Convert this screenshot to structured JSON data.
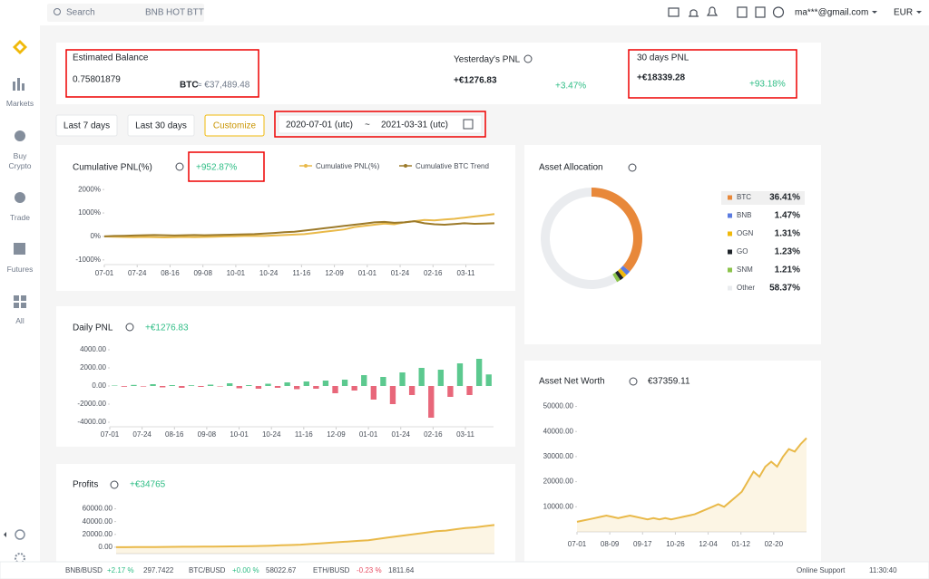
{
  "topbar": {
    "search": "Search",
    "hints": [
      "BNB",
      "HOT",
      "BTT"
    ],
    "email": "ma***@gmail.com",
    "currency": "EUR"
  },
  "sidebar": [
    "Markets",
    "Buy Crypto",
    "Trade",
    "Futures",
    "All"
  ],
  "balance": {
    "label": "Estimated Balance",
    "value": "0.75801879",
    "unit": "BTC",
    "approx": "≈ €37,489.48",
    "yesterday_label": "Yesterday's PNL",
    "yesterday_value": "+€1276.83",
    "yesterday_pct": "+3.47%",
    "month_label": "30 days PNL",
    "month_value": "+€18339.28",
    "month_pct": "+93.18%"
  },
  "filters": {
    "buttons": [
      "Last 7 days",
      "Last 30 days",
      "Customize"
    ],
    "start": "2020-07-01 (utc)",
    "sep": "~",
    "end": "2021-03-31 (utc)"
  },
  "cumulative_pnl": {
    "headline": "+952.87%",
    "chart_data": {
      "type": "line",
      "title": "Cumulative PNL(%)",
      "xticks": [
        "07-01",
        "07-24",
        "08-16",
        "09-08",
        "10-01",
        "10-24",
        "11-16",
        "12-09",
        "01-01",
        "01-24",
        "02-16",
        "03-11"
      ],
      "ylim": [
        -1200,
        2200
      ],
      "yticks": [
        {
          "value": 2000,
          "label": "2000%"
        },
        {
          "value": 1000,
          "label": "1000%"
        },
        {
          "value": 0,
          "label": "0%"
        },
        {
          "value": -1000,
          "label": "-1000%"
        }
      ],
      "series": [
        {
          "name": "Cumulative PNL(%)",
          "color": "#e9b949",
          "values": [
            0,
            -10,
            -20,
            -30,
            -20,
            -30,
            -40,
            -30,
            -20,
            -30,
            -20,
            -10,
            0,
            10,
            20,
            30,
            20,
            40,
            60,
            80,
            100,
            150,
            200,
            250,
            300,
            400,
            450,
            500,
            550,
            520,
            600,
            650,
            700,
            680,
            720,
            750,
            800,
            850,
            900,
            952.87
          ]
        },
        {
          "name": "Cumulative BTC Trend",
          "color": "#9c7a2a",
          "values": [
            0,
            20,
            30,
            40,
            50,
            60,
            50,
            40,
            50,
            60,
            50,
            60,
            70,
            80,
            90,
            100,
            120,
            150,
            180,
            200,
            250,
            300,
            350,
            400,
            450,
            500,
            550,
            600,
            620,
            580,
            600,
            650,
            560,
            520,
            500,
            530,
            560,
            540,
            550,
            560
          ]
        }
      ]
    }
  },
  "daily_pnl": {
    "headline": "+€1276.83",
    "chart_data": {
      "type": "bar",
      "title": "Daily PNL",
      "positive_color": "#5cc98f",
      "negative_color": "#e8677a",
      "xticks": [
        "07-01",
        "07-24",
        "08-16",
        "09-08",
        "10-01",
        "10-24",
        "11-16",
        "12-09",
        "01-01",
        "01-24",
        "02-16",
        "03-11"
      ],
      "ylim": [
        -4500,
        4500
      ],
      "yticks": [
        {
          "value": 4000,
          "label": "4000.00"
        },
        {
          "value": 2000,
          "label": "2000.00"
        },
        {
          "value": 0,
          "label": "0.00"
        },
        {
          "value": -2000,
          "label": "-2000.00"
        },
        {
          "value": -4000,
          "label": "-4000.00"
        }
      ],
      "values": [
        50,
        -80,
        120,
        -60,
        200,
        -150,
        100,
        -200,
        80,
        -100,
        150,
        -50,
        300,
        -250,
        100,
        -300,
        250,
        -200,
        400,
        -350,
        500,
        -300,
        600,
        -800,
        700,
        -500,
        1200,
        -1500,
        1000,
        -2000,
        1500,
        -1000,
        2000,
        -3500,
        1800,
        -1200,
        2500,
        -1000,
        3000,
        1276.83
      ]
    }
  },
  "profits": {
    "headline": "+€34765",
    "chart_data": {
      "type": "line",
      "title": "Profits",
      "color": "#e9b949",
      "ylim": [
        -10000,
        65000
      ],
      "yticks": [
        {
          "value": 60000,
          "label": "60000.00"
        },
        {
          "value": 40000,
          "label": "40000.00"
        },
        {
          "value": 20000,
          "label": "20000.00"
        },
        {
          "value": 0,
          "label": "0.00"
        }
      ],
      "values": [
        0,
        100,
        200,
        300,
        400,
        500,
        600,
        700,
        800,
        900,
        1000,
        1200,
        1300,
        1500,
        1800,
        2000,
        2500,
        3000,
        3500,
        4000,
        5000,
        6000,
        7000,
        8000,
        9000,
        10000,
        11000,
        13000,
        15000,
        17000,
        19000,
        21000,
        23000,
        25000,
        26000,
        28000,
        30000,
        31000,
        33000,
        34765
      ]
    }
  },
  "asset_allocation": {
    "chart_data": {
      "type": "pie",
      "title": "Asset Allocation",
      "categories": [
        "BTC",
        "BNB",
        "OGN",
        "GO",
        "SNM",
        "Other"
      ],
      "values": [
        36.41,
        1.47,
        1.31,
        1.23,
        1.21,
        58.37
      ],
      "value_labels": [
        "36.41%",
        "1.47%",
        "1.31%",
        "1.23%",
        "1.21%",
        "58.37%"
      ],
      "colors": [
        "#e8883a",
        "#5b7be0",
        "#f0b90b",
        "#1e2329",
        "#8bc34a",
        "#eaecef"
      ]
    }
  },
  "net_worth": {
    "headline": "€37359.11",
    "chart_data": {
      "type": "line",
      "title": "Asset Net Worth",
      "color": "#e9b949",
      "xticks": [
        "07-01",
        "08-09",
        "09-17",
        "10-26",
        "12-04",
        "01-12",
        "02-20"
      ],
      "ylim": [
        0,
        52000
      ],
      "yticks": [
        {
          "value": 50000,
          "label": "50000.00"
        },
        {
          "value": 40000,
          "label": "40000.00"
        },
        {
          "value": 30000,
          "label": "30000.00"
        },
        {
          "value": 20000,
          "label": "20000.00"
        },
        {
          "value": 10000,
          "label": "10000.00"
        }
      ],
      "values": [
        4000,
        4500,
        5000,
        5500,
        6000,
        6500,
        6000,
        5500,
        6000,
        6500,
        6000,
        5500,
        5000,
        5500,
        5000,
        5500,
        5000,
        5500,
        6000,
        6500,
        7000,
        8000,
        9000,
        10000,
        11000,
        10000,
        12000,
        14000,
        16000,
        20000,
        24000,
        22000,
        26000,
        28000,
        26000,
        30000,
        33000,
        32000,
        35000,
        37359.11
      ]
    }
  },
  "ticker": [
    {
      "pair": "BNB/BUSD",
      "change": "+2.17 %",
      "price": "297.7422"
    },
    {
      "pair": "BTC/BUSD",
      "change": "+0.00 %",
      "price": "58022.67"
    },
    {
      "pair": "ETH/BUSD",
      "change": "-0.23 %",
      "price": "1811.64"
    }
  ],
  "footer": {
    "support": "Online Support",
    "time": "11:30:40"
  }
}
